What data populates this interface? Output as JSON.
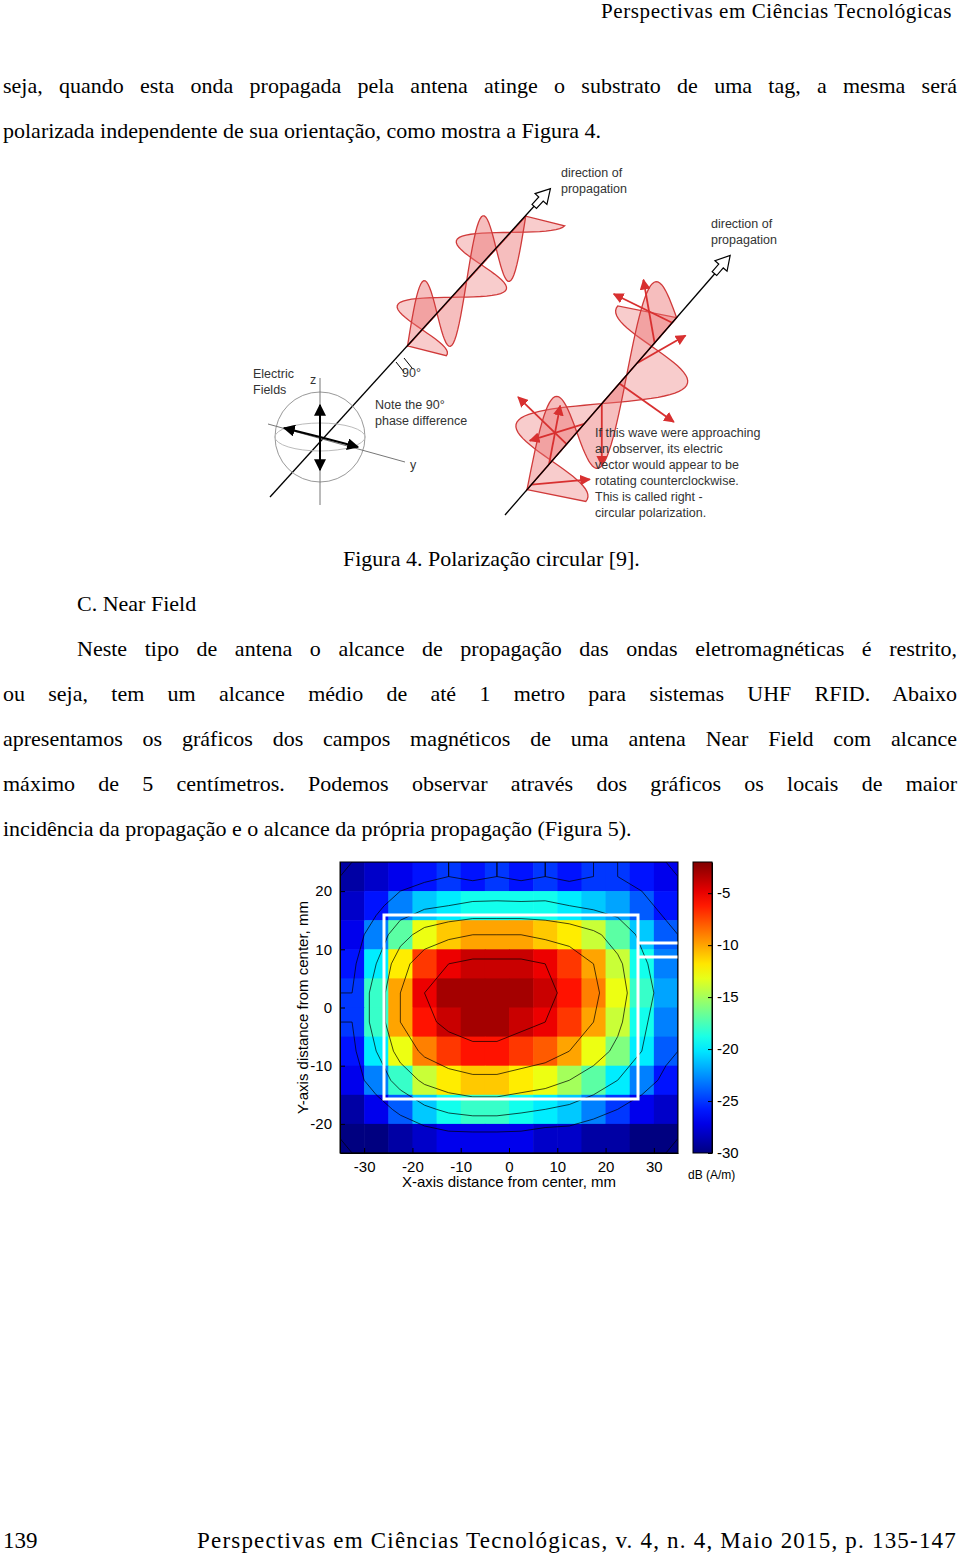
{
  "header": {
    "running_title": "Perspectivas em Ciências Tecnológicas"
  },
  "paragraph_1": [
    "seja, quando esta onda propagada pela antena atinge o substrato de uma tag, a mesma será",
    "polarizada independente de sua orientação, como mostra a Figura 4."
  ],
  "figure_4": {
    "labels": {
      "direction_1": [
        "direction of",
        "propagation"
      ],
      "direction_2": [
        "direction of",
        "propagation"
      ],
      "electric_fields": [
        "Electric",
        "Fields"
      ],
      "z_axis": "z",
      "y_axis": "y",
      "angle": "90°",
      "phase_note": [
        "Note the 90°",
        "phase difference"
      ],
      "rhcp_note": [
        "If this wave were approaching",
        "an observer, its electric",
        "vector would appear to be",
        "rotating counterclockwise.",
        "This is called right -",
        "circular polarization."
      ]
    },
    "caption": "Figura 4. Polarização circular [9]."
  },
  "section_heading": "C. Near Field",
  "paragraph_2": [
    "Neste tipo de antena o alcance de propagação das ondas eletromagnéticas é restrito,",
    "ou seja, tem um alcance médio de até 1 metro para sistemas UHF RFID. Abaixo",
    "apresentamos os gráficos dos campos magnéticos de uma antena Near Field com alcance",
    "máximo de 5 centímetros. Podemos observar através dos gráficos os locais de maior",
    "incidência da propagação e o alcance da própria propagação (Figura 5)."
  ],
  "chart_data": {
    "type": "heatmap",
    "xlabel": "X-axis distance from center, mm",
    "ylabel": "Y-axis distance from center, mm",
    "xlim": [
      -35,
      35
    ],
    "ylim": [
      -25,
      25
    ],
    "xticks": [
      -30,
      -20,
      -10,
      0,
      10,
      20,
      30
    ],
    "yticks": [
      -20,
      -10,
      0,
      10,
      20
    ],
    "x": [
      -32.5,
      -27.5,
      -22.5,
      -17.5,
      -12.5,
      -7.5,
      -2.5,
      2.5,
      7.5,
      12.5,
      17.5,
      22.5,
      27.5,
      32.5
    ],
    "y": [
      22.5,
      17.5,
      12.5,
      7.5,
      2.5,
      -2.5,
      -7.5,
      -12.5,
      -17.5,
      -22.5
    ],
    "z": [
      [
        -29,
        -28,
        -27,
        -26,
        -25,
        -26,
        -25,
        -26,
        -25,
        -26,
        -25,
        -25,
        -26,
        -27
      ],
      [
        -28,
        -26,
        -23,
        -21,
        -20,
        -19,
        -19,
        -19,
        -19,
        -20,
        -21,
        -22,
        -24,
        -26
      ],
      [
        -27,
        -23,
        -17,
        -13,
        -11,
        -10,
        -10,
        -10,
        -11,
        -12,
        -14,
        -17,
        -21,
        -24
      ],
      [
        -26,
        -20,
        -12,
        -7,
        -5,
        -4,
        -4,
        -4,
        -5,
        -7,
        -10,
        -14,
        -19,
        -23
      ],
      [
        -25,
        -18,
        -10,
        -5,
        -3,
        -3,
        -3,
        -3,
        -4,
        -6,
        -9,
        -13,
        -18,
        -22
      ],
      [
        -25,
        -18,
        -10,
        -6,
        -4,
        -3,
        -3,
        -4,
        -5,
        -7,
        -10,
        -14,
        -19,
        -23
      ],
      [
        -26,
        -20,
        -13,
        -9,
        -7,
        -6,
        -6,
        -7,
        -8,
        -10,
        -13,
        -16,
        -20,
        -24
      ],
      [
        -27,
        -23,
        -18,
        -14,
        -12,
        -11,
        -11,
        -12,
        -13,
        -15,
        -17,
        -20,
        -23,
        -26
      ],
      [
        -29,
        -27,
        -24,
        -21,
        -19,
        -18,
        -18,
        -19,
        -20,
        -21,
        -23,
        -25,
        -27,
        -28
      ],
      [
        -30,
        -30,
        -29,
        -28,
        -27,
        -27,
        -27,
        -27,
        -28,
        -28,
        -29,
        -29,
        -30,
        -30
      ]
    ],
    "colorbar": {
      "range": [
        -30,
        -2
      ],
      "ticks": [
        -30,
        -25,
        -20,
        -15,
        -10,
        -5
      ],
      "label": "dB (A/m)"
    }
  },
  "footer": {
    "page_number": "139",
    "citation": "Perspectivas em Ciências Tecnológicas, v. 4, n. 4, Maio 2015, p. 135-147"
  }
}
